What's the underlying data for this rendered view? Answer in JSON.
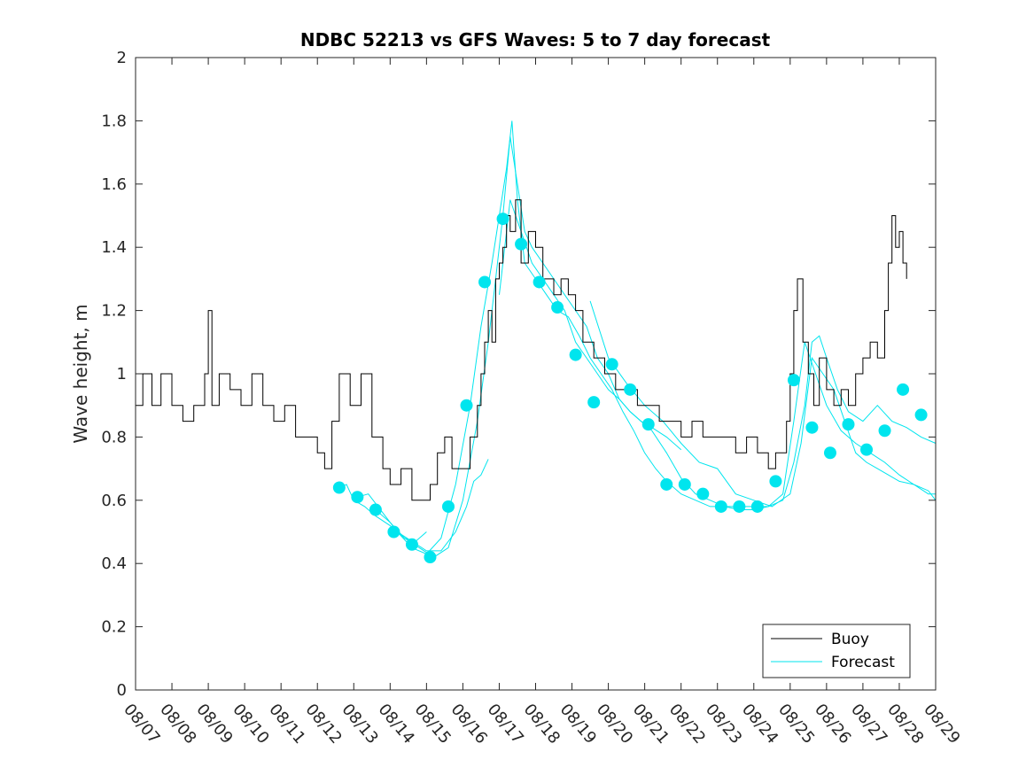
{
  "chart_data": {
    "type": "line",
    "title": "NDBC 52213 vs GFS Waves: 5 to 7 day forecast",
    "xlabel": "",
    "ylabel": "Wave height, m",
    "xlim": [
      0,
      22
    ],
    "ylim": [
      0,
      2
    ],
    "x_tick_labels": [
      "08/07",
      "08/08",
      "08/09",
      "08/10",
      "08/11",
      "08/12",
      "08/13",
      "08/14",
      "08/15",
      "08/16",
      "08/17",
      "08/18",
      "08/19",
      "08/20",
      "08/21",
      "08/22",
      "08/23",
      "08/24",
      "08/25",
      "08/26",
      "08/27",
      "08/28",
      "08/29"
    ],
    "y_ticks": [
      0,
      0.2,
      0.4,
      0.6,
      0.8,
      1,
      1.2,
      1.4,
      1.6,
      1.8,
      2
    ],
    "y_tick_labels": [
      "0",
      "0.2",
      "0.4",
      "0.6",
      "0.8",
      "1",
      "1.2",
      "1.4",
      "1.6",
      "1.8",
      "2"
    ],
    "legend": {
      "position": "bottom-right",
      "entries": [
        "Buoy",
        "Forecast"
      ]
    },
    "colors": {
      "buoy": "#000000",
      "forecast": "#00e5ee",
      "axes": "#262626"
    },
    "buoy": {
      "name": "Buoy",
      "x": [
        0,
        0.2,
        0.45,
        0.7,
        1.0,
        1.3,
        1.6,
        1.9,
        2.0,
        2.1,
        2.3,
        2.6,
        2.9,
        3.2,
        3.5,
        3.8,
        4.1,
        4.4,
        4.7,
        5.0,
        5.2,
        5.4,
        5.6,
        5.9,
        6.2,
        6.5,
        6.8,
        7.0,
        7.3,
        7.6,
        7.9,
        8.1,
        8.3,
        8.5,
        8.7,
        9.0,
        9.2,
        9.4,
        9.5,
        9.6,
        9.7,
        9.8,
        9.9,
        10.0,
        10.1,
        10.2,
        10.3,
        10.45,
        10.6,
        10.8,
        11.0,
        11.2,
        11.5,
        11.7,
        11.9,
        12.1,
        12.3,
        12.6,
        12.9,
        13.2,
        13.5,
        13.8,
        14.1,
        14.4,
        14.7,
        15.0,
        15.3,
        15.6,
        15.9,
        16.2,
        16.5,
        16.8,
        17.1,
        17.4,
        17.6,
        17.8,
        17.9,
        18.0,
        18.1,
        18.2,
        18.35,
        18.5,
        18.65,
        18.8,
        19.0,
        19.2,
        19.4,
        19.6,
        19.8,
        20.0,
        20.2,
        20.4,
        20.6,
        20.7,
        20.8,
        20.9,
        21.0,
        21.1,
        21.2
      ],
      "y": [
        0.9,
        1.0,
        0.9,
        1.0,
        0.9,
        0.85,
        0.9,
        1.0,
        1.2,
        0.9,
        1.0,
        0.95,
        0.9,
        1.0,
        0.9,
        0.85,
        0.9,
        0.8,
        0.8,
        0.75,
        0.7,
        0.85,
        1.0,
        0.9,
        1.0,
        0.8,
        0.7,
        0.65,
        0.7,
        0.6,
        0.6,
        0.65,
        0.75,
        0.8,
        0.7,
        0.7,
        0.8,
        0.9,
        1.0,
        1.1,
        1.2,
        1.1,
        1.3,
        1.35,
        1.4,
        1.5,
        1.45,
        1.55,
        1.35,
        1.45,
        1.4,
        1.3,
        1.25,
        1.3,
        1.25,
        1.2,
        1.1,
        1.05,
        1.0,
        0.95,
        0.95,
        0.9,
        0.9,
        0.85,
        0.85,
        0.8,
        0.85,
        0.8,
        0.8,
        0.8,
        0.75,
        0.8,
        0.75,
        0.7,
        0.75,
        0.75,
        0.85,
        1.0,
        1.2,
        1.3,
        1.1,
        1.0,
        0.9,
        1.05,
        0.95,
        0.9,
        0.95,
        0.9,
        1.0,
        1.05,
        1.1,
        1.05,
        1.2,
        1.35,
        1.5,
        1.4,
        1.45,
        1.35,
        1.3
      ]
    },
    "forecast_lines": [
      {
        "name": "Forecast",
        "x": [
          5.6,
          5.8,
          6.0,
          6.3,
          6.6,
          7.0,
          7.4,
          7.7,
          8.0
        ],
        "y": [
          0.64,
          0.65,
          0.6,
          0.58,
          0.55,
          0.52,
          0.48,
          0.47,
          0.5
        ]
      },
      {
        "name": "Forecast",
        "x": [
          6.1,
          6.4,
          6.8,
          7.2,
          7.6,
          8.0,
          8.4,
          8.8,
          9.1,
          9.3,
          9.5,
          9.7
        ],
        "y": [
          0.61,
          0.62,
          0.56,
          0.5,
          0.47,
          0.44,
          0.44,
          0.5,
          0.58,
          0.66,
          0.68,
          0.73
        ]
      },
      {
        "name": "Forecast",
        "x": [
          6.6,
          7.0,
          7.4,
          7.8,
          8.2,
          8.6,
          9.0,
          9.4,
          9.7,
          9.9,
          10.1,
          10.3,
          10.5,
          10.7,
          10.9,
          11.2,
          11.5,
          11.8,
          12.1,
          12.4,
          12.7,
          13.0,
          13.3,
          13.6,
          13.9,
          14.2,
          14.6,
          15.0
        ],
        "y": [
          0.57,
          0.53,
          0.48,
          0.45,
          0.42,
          0.45,
          0.6,
          0.85,
          1.1,
          1.3,
          1.5,
          1.75,
          1.6,
          1.45,
          1.4,
          1.35,
          1.3,
          1.25,
          1.2,
          1.15,
          1.05,
          1.0,
          0.92,
          0.88,
          0.85,
          0.83,
          0.8,
          0.76
        ]
      },
      {
        "name": "Forecast",
        "x": [
          7.2,
          7.6,
          8.0,
          8.4,
          8.8,
          9.2,
          9.5,
          9.8,
          10.0,
          10.2,
          10.35,
          10.5,
          10.7,
          11.0,
          11.3,
          11.6,
          11.9,
          12.2,
          12.5,
          12.8,
          13.1,
          13.4,
          13.7,
          14.0,
          14.3,
          14.6,
          15.0,
          15.4,
          15.8,
          16.2,
          16.6,
          17.0,
          17.4,
          17.8,
          18.1,
          18.4,
          18.6,
          18.8,
          19.0,
          19.3,
          19.6,
          20.0,
          20.4,
          20.8,
          21.2,
          21.6,
          22.0
        ],
        "y": [
          0.5,
          0.45,
          0.43,
          0.48,
          0.65,
          0.9,
          1.15,
          1.35,
          1.5,
          1.65,
          1.8,
          1.55,
          1.35,
          1.3,
          1.25,
          1.2,
          1.18,
          1.12,
          1.05,
          1.0,
          0.95,
          0.88,
          0.82,
          0.75,
          0.7,
          0.66,
          0.62,
          0.6,
          0.58,
          0.58,
          0.58,
          0.58,
          0.58,
          0.6,
          0.72,
          0.9,
          1.1,
          1.12,
          1.05,
          0.95,
          0.88,
          0.85,
          0.9,
          0.85,
          0.83,
          0.8,
          0.78
        ]
      },
      {
        "name": "Forecast",
        "x": [
          10.0,
          10.3,
          10.6,
          10.9,
          11.2,
          11.5,
          11.8,
          12.1,
          12.4,
          12.7,
          13.0,
          13.3,
          13.6,
          13.9,
          14.2,
          14.6,
          15.0,
          15.4,
          15.8,
          16.2,
          16.6,
          17.0,
          17.4,
          17.8,
          18.1,
          18.4,
          18.7,
          19.0,
          19.4,
          19.8,
          20.2,
          20.6,
          21.0,
          21.4,
          21.8,
          22.0
        ],
        "y": [
          1.25,
          1.55,
          1.45,
          1.35,
          1.3,
          1.25,
          1.2,
          1.1,
          1.05,
          1.0,
          0.95,
          0.92,
          0.88,
          0.85,
          0.82,
          0.75,
          0.67,
          0.62,
          0.6,
          0.58,
          0.57,
          0.57,
          0.58,
          0.62,
          0.85,
          1.1,
          1.0,
          0.9,
          0.82,
          0.78,
          0.75,
          0.72,
          0.68,
          0.65,
          0.62,
          0.62
        ]
      },
      {
        "name": "Forecast",
        "x": [
          12.5,
          13.0,
          13.5,
          14.0,
          14.5,
          15.0,
          15.5,
          16.0,
          16.5,
          17.0,
          17.5,
          18.0,
          18.3,
          18.6,
          18.9,
          19.2,
          19.5,
          19.8,
          20.1,
          20.4,
          20.7,
          21.0,
          21.4,
          21.8,
          22.0
        ],
        "y": [
          1.23,
          1.05,
          0.97,
          0.9,
          0.85,
          0.78,
          0.72,
          0.7,
          0.62,
          0.6,
          0.58,
          0.62,
          0.78,
          1.05,
          1.0,
          0.95,
          0.85,
          0.75,
          0.72,
          0.7,
          0.68,
          0.66,
          0.65,
          0.63,
          0.6
        ]
      }
    ],
    "forecast_markers": {
      "x": [
        5.6,
        6.1,
        6.6,
        7.1,
        7.6,
        8.1,
        8.6,
        9.1,
        9.6,
        10.1,
        10.6,
        11.1,
        11.6,
        12.1,
        12.6,
        13.1,
        13.6,
        14.1,
        14.6,
        15.1,
        15.6,
        16.1,
        16.6,
        17.1,
        17.6,
        18.1,
        18.6,
        19.1,
        19.6,
        20.1,
        20.6,
        21.1,
        21.6
      ],
      "y": [
        0.64,
        0.61,
        0.57,
        0.5,
        0.46,
        0.42,
        0.58,
        0.9,
        1.29,
        1.49,
        1.41,
        1.29,
        1.21,
        1.06,
        0.91,
        1.03,
        0.95,
        0.84,
        0.65,
        0.65,
        0.62,
        0.58,
        0.58,
        0.58,
        0.66,
        0.98,
        0.83,
        0.75,
        0.84,
        0.76,
        0.82,
        0.95,
        0.87
      ]
    }
  }
}
